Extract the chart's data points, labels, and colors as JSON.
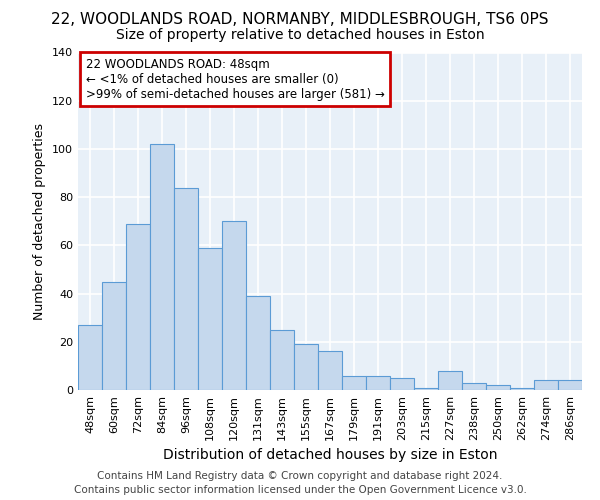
{
  "title": "22, WOODLANDS ROAD, NORMANBY, MIDDLESBROUGH, TS6 0PS",
  "subtitle": "Size of property relative to detached houses in Eston",
  "xlabel": "Distribution of detached houses by size in Eston",
  "ylabel": "Number of detached properties",
  "categories": [
    "48sqm",
    "60sqm",
    "72sqm",
    "84sqm",
    "96sqm",
    "108sqm",
    "120sqm",
    "131sqm",
    "143sqm",
    "155sqm",
    "167sqm",
    "179sqm",
    "191sqm",
    "203sqm",
    "215sqm",
    "227sqm",
    "238sqm",
    "250sqm",
    "262sqm",
    "274sqm",
    "286sqm"
  ],
  "values": [
    27,
    45,
    69,
    102,
    84,
    59,
    70,
    39,
    25,
    19,
    16,
    6,
    6,
    5,
    1,
    8,
    3,
    2,
    1,
    4,
    4
  ],
  "bar_color": "#c5d8ed",
  "bar_edge_color": "#5b9bd5",
  "annotation_title": "22 WOODLANDS ROAD: 48sqm",
  "annotation_line1": "← <1% of detached houses are smaller (0)",
  "annotation_line2": ">99% of semi-detached houses are larger (581) →",
  "annotation_box_color": "#ffffff",
  "annotation_box_edge": "#cc0000",
  "ylim": [
    0,
    140
  ],
  "yticks": [
    0,
    20,
    40,
    60,
    80,
    100,
    120,
    140
  ],
  "footer_line1": "Contains HM Land Registry data © Crown copyright and database right 2024.",
  "footer_line2": "Contains public sector information licensed under the Open Government Licence v3.0.",
  "bg_color": "#ffffff",
  "plot_bg_color": "#e8f0f8",
  "grid_color": "#ffffff",
  "title_fontsize": 11,
  "subtitle_fontsize": 10,
  "xlabel_fontsize": 10,
  "ylabel_fontsize": 9,
  "tick_fontsize": 8,
  "annotation_fontsize": 8.5,
  "footer_fontsize": 7.5
}
